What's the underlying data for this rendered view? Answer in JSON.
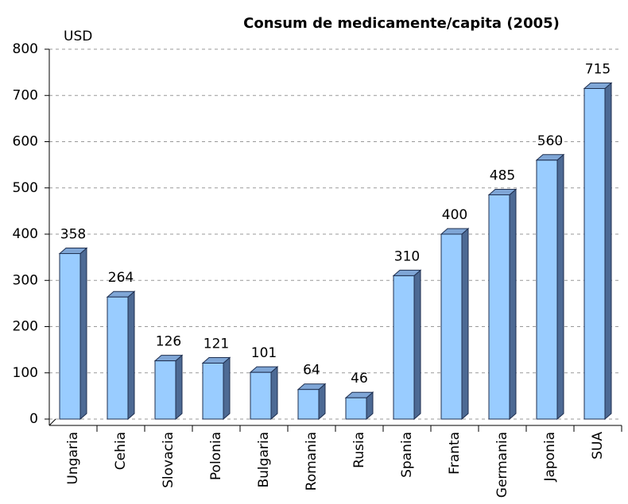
{
  "chart_data": {
    "type": "bar",
    "title": "Consum de medicamente/capita (2005)",
    "y_axis_label": "USD",
    "categories": [
      "Ungaria",
      "Cehia",
      "Slovacia",
      "Polonia",
      "Bulgaria",
      "Romania",
      "Rusia",
      "Spania",
      "Franta",
      "Germania",
      "Japonia",
      "SUA"
    ],
    "values": [
      358,
      264,
      126,
      121,
      101,
      64,
      46,
      310,
      400,
      485,
      560,
      715
    ],
    "color": "#99ccff",
    "ylim": [
      0,
      800
    ],
    "yticks": [
      0,
      100,
      200,
      300,
      400,
      500,
      600,
      700,
      800
    ],
    "grid": true
  }
}
